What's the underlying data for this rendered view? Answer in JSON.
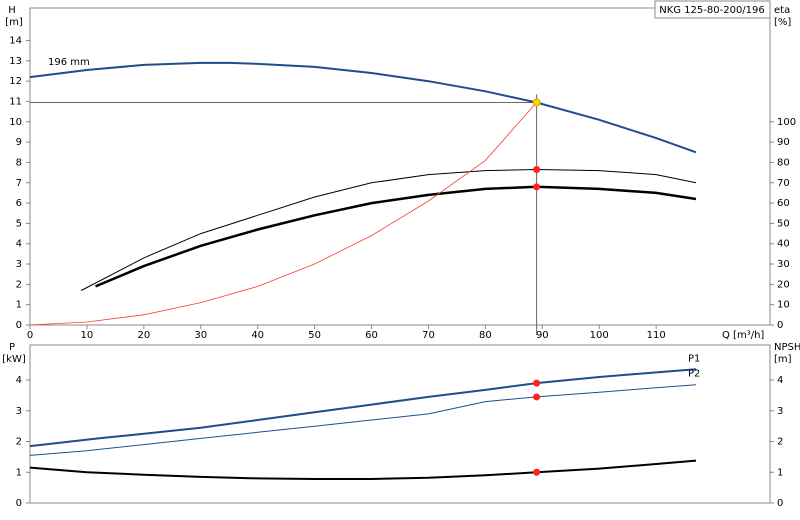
{
  "chart_data": [
    {
      "type": "line",
      "title": "NKG 125-80-200/196",
      "xlabel": "Q [m³/h]",
      "ylabel": "H",
      "yunit": "[m]",
      "y2label": "eta",
      "y2unit": "[%]",
      "xlim": [
        0,
        130
      ],
      "xticks": [
        0,
        10,
        20,
        30,
        40,
        50,
        60,
        70,
        80,
        90,
        100,
        110
      ],
      "ylim": [
        0,
        15.6
      ],
      "yticks": [
        0,
        1,
        2,
        3,
        4,
        5,
        6,
        7,
        8,
        9,
        10,
        11,
        12,
        13,
        14
      ],
      "y2lim": [
        0,
        156
      ],
      "y2ticks": [
        0,
        10,
        20,
        30,
        40,
        50,
        60,
        70,
        80,
        90,
        100
      ],
      "series": [
        {
          "label": "196 mm",
          "color": "#1f4e8c",
          "linewidth": 2,
          "x": [
            0,
            10,
            20,
            30,
            35,
            40,
            50,
            60,
            70,
            80,
            89,
            100,
            110,
            117
          ],
          "values": [
            12.2,
            12.55,
            12.8,
            12.9,
            12.9,
            12.85,
            12.7,
            12.4,
            12.0,
            11.5,
            10.95,
            10.1,
            9.2,
            8.5
          ]
        },
        {
          "color": "#000000",
          "linewidth": 1,
          "axis": "y2",
          "x": [
            9,
            20,
            30,
            40,
            50,
            60,
            70,
            80,
            89,
            100,
            110,
            117
          ],
          "values": [
            17,
            33,
            45,
            54,
            63,
            70,
            74,
            76,
            76.5,
            76,
            74,
            70
          ]
        },
        {
          "color": "#000000",
          "linewidth": 2.5,
          "axis": "y2",
          "x": [
            11.5,
            20,
            30,
            40,
            50,
            60,
            70,
            80,
            89,
            100,
            110,
            117
          ],
          "values": [
            19,
            29,
            39,
            47,
            54,
            60,
            64,
            67,
            68,
            67,
            65,
            62
          ]
        },
        {
          "color": "#ff3b30",
          "linewidth": 0.8,
          "x": [
            0,
            10,
            20,
            30,
            40,
            50,
            60,
            70,
            80,
            89
          ],
          "values": [
            0,
            0.15,
            0.5,
            1.1,
            1.9,
            3.0,
            4.4,
            6.1,
            8.1,
            10.95
          ]
        }
      ],
      "points": [
        {
          "x": 89,
          "y": 10.95,
          "color": "#ffd700",
          "guides": true
        },
        {
          "x": 89,
          "y": 76.5,
          "axis": "y2",
          "color": "#ff2020"
        },
        {
          "x": 89,
          "y": 68,
          "axis": "y2",
          "color": "#ff2020"
        }
      ]
    },
    {
      "type": "line",
      "ylabel": "P",
      "yunit": "[kW]",
      "y2label": "NPSH",
      "y2unit": "[m]",
      "xlim": [
        0,
        130
      ],
      "ylim": [
        0,
        5.14
      ],
      "yticks": [
        0,
        1,
        2,
        3,
        4
      ],
      "y2lim": [
        0,
        5.14
      ],
      "y2ticks": [
        0,
        1,
        2,
        3,
        4
      ],
      "series": [
        {
          "name": "P1",
          "color": "#1f4e8c",
          "linewidth": 2,
          "x": [
            0,
            12,
            20,
            30,
            40,
            50,
            60,
            70,
            80,
            89,
            100,
            110,
            117
          ],
          "values": [
            1.85,
            2.1,
            2.25,
            2.45,
            2.7,
            2.95,
            3.2,
            3.45,
            3.68,
            3.9,
            4.1,
            4.25,
            4.35
          ]
        },
        {
          "name": "P2",
          "color": "#1f4e8c",
          "linewidth": 1,
          "x": [
            0,
            10,
            20,
            30,
            40,
            50,
            60,
            70,
            80,
            89,
            100,
            110,
            117
          ],
          "values": [
            1.55,
            1.7,
            1.9,
            2.1,
            2.3,
            2.5,
            2.7,
            2.9,
            3.3,
            3.45,
            3.6,
            3.75,
            3.85
          ]
        },
        {
          "color": "#000000",
          "linewidth": 2,
          "axis": "y2",
          "x": [
            0,
            10,
            20,
            30,
            40,
            50,
            60,
            70,
            80,
            89,
            100,
            110,
            117
          ],
          "values": [
            1.15,
            1.0,
            0.92,
            0.85,
            0.8,
            0.78,
            0.78,
            0.82,
            0.9,
            1.0,
            1.12,
            1.27,
            1.38
          ]
        }
      ],
      "points": [
        {
          "x": 89,
          "y": 3.9,
          "color": "#ff2020"
        },
        {
          "x": 89,
          "y": 3.45,
          "color": "#ff2020"
        },
        {
          "x": 89,
          "y": 1.0,
          "axis": "y2",
          "color": "#ff2020"
        }
      ]
    }
  ]
}
